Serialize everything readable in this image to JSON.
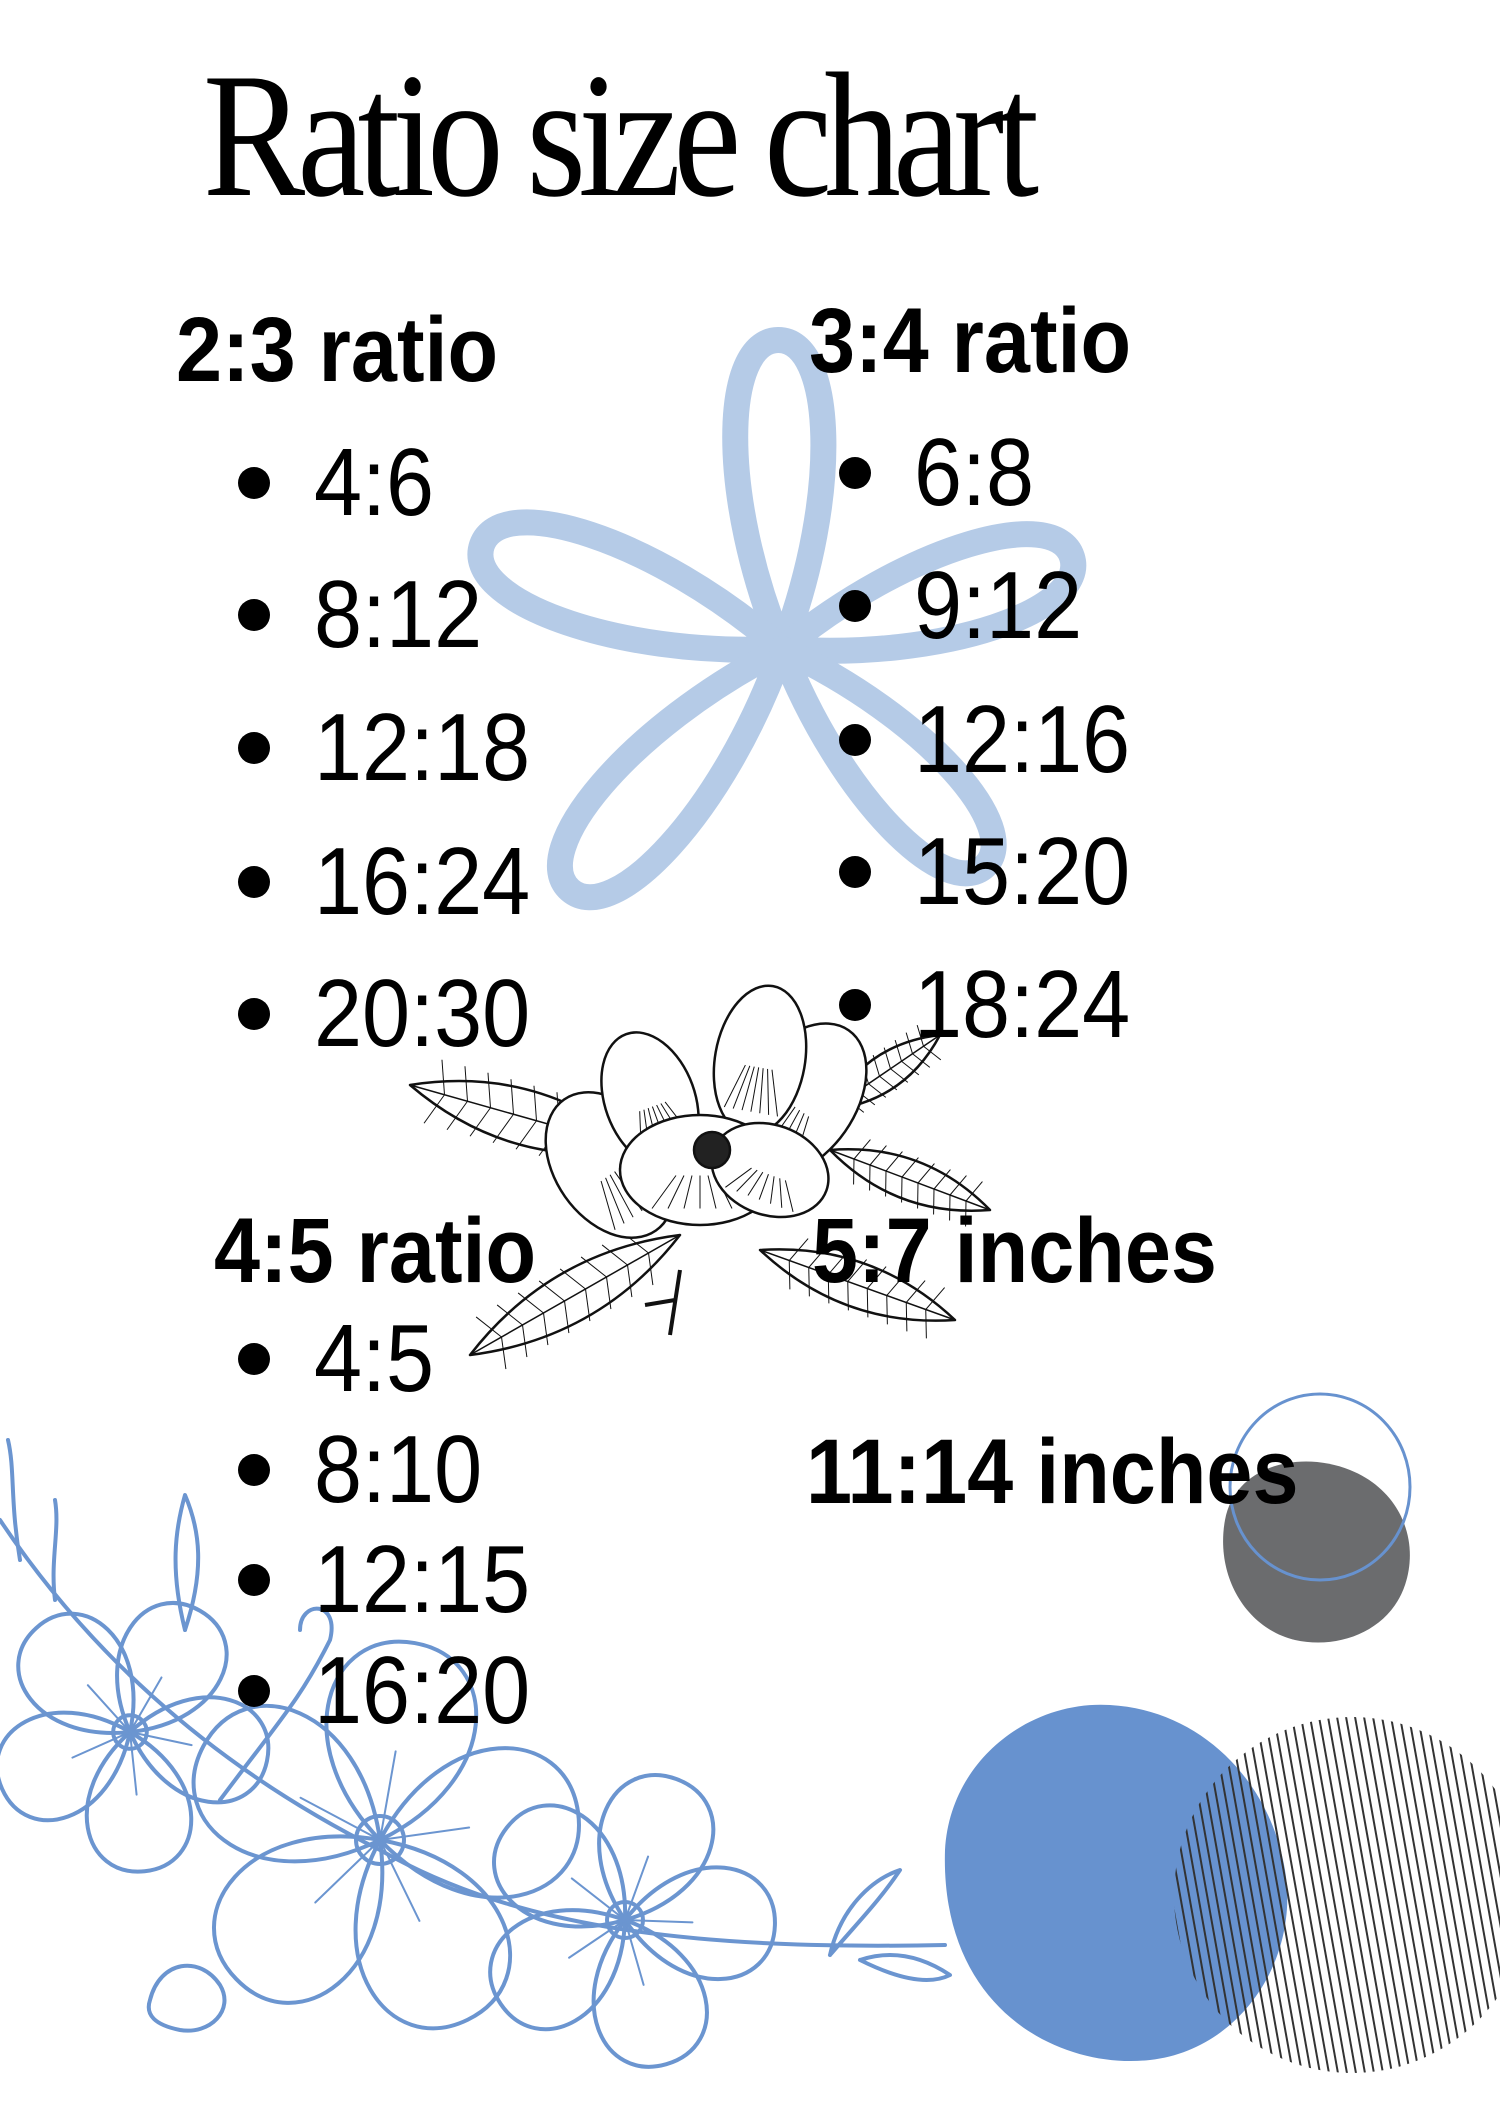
{
  "title": "Ratio size chart",
  "sections": [
    {
      "heading": "2:3 ratio",
      "items": [
        "4:6",
        "8:12",
        "12:18",
        "16:24",
        "20:30"
      ]
    },
    {
      "heading": "3:4 ratio",
      "items": [
        "6:8",
        "9:12",
        "12:16",
        "15:20",
        "18:24"
      ]
    },
    {
      "heading": "4:5 ratio",
      "items": [
        "4:5",
        "8:10",
        "12:15",
        "16:20"
      ]
    },
    {
      "heading": "5:7 inches",
      "items": []
    },
    {
      "heading": "11:14 inches",
      "items": []
    }
  ],
  "colors": {
    "light_blue_flower": "#b5cbe7",
    "blue_accent": "#6792cf",
    "gray_blob": "#6b6c6e",
    "text": "#000000"
  },
  "decorations": [
    "five-petal-loop-flower",
    "magnolia-line-art",
    "blue-floral-line-art",
    "gray-blob",
    "blue-outline-circle",
    "blue-circle",
    "hatched-circle"
  ]
}
